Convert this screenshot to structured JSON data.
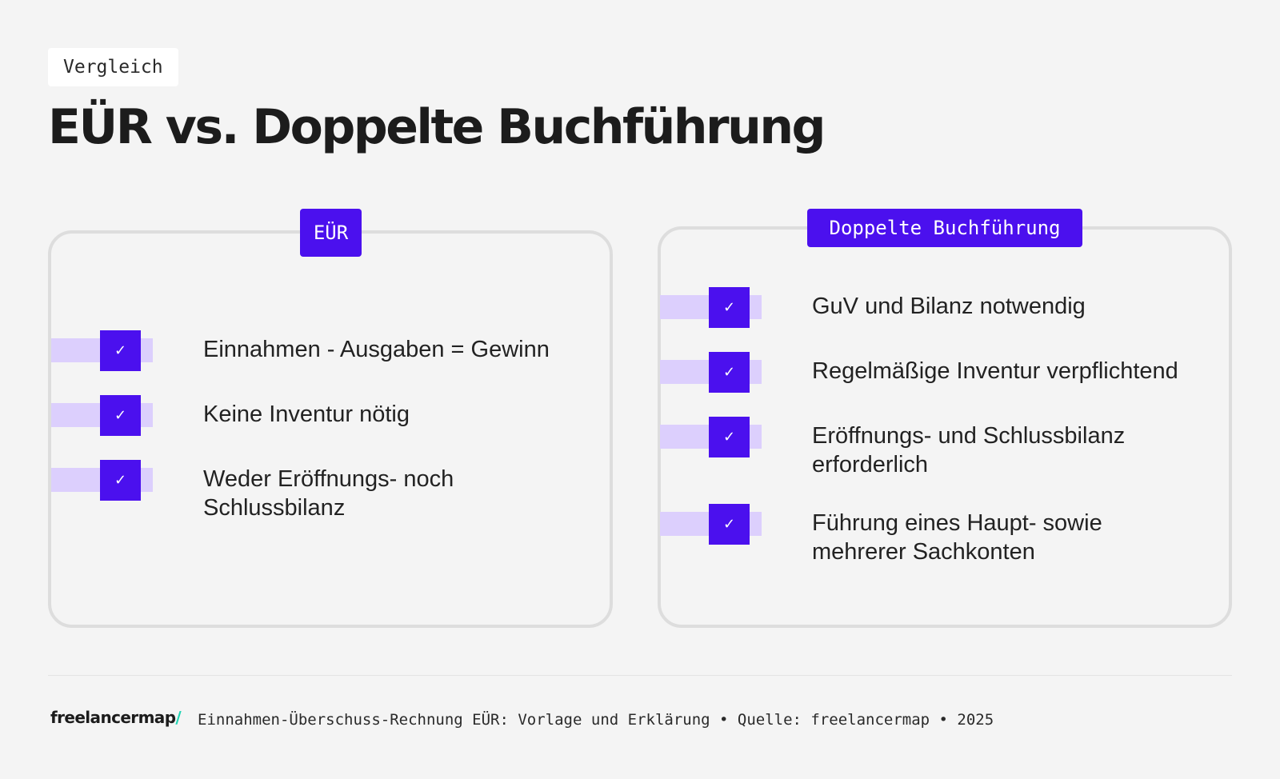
{
  "header": {
    "tag": "Vergleich",
    "title": "EÜR vs. Doppelte Buchführung"
  },
  "left_card": {
    "label": "EÜR",
    "items": [
      {
        "line1": "Einnahmen - Ausgaben = Gewinn",
        "line2": ""
      },
      {
        "line1": "Keine Inventur nötig",
        "line2": ""
      },
      {
        "line1": "Weder Eröffnungs- noch",
        "line2": "Schlussbilanz"
      }
    ]
  },
  "right_card": {
    "label": "Doppelte Buchführung",
    "items": [
      {
        "line1": "GuV und Bilanz notwendig",
        "line2": ""
      },
      {
        "line1": "Regelmäßige Inventur verpflichtend",
        "line2": ""
      },
      {
        "line1": "Eröffnungs- und Schlussbilanz",
        "line2": "erforderlich"
      },
      {
        "line1": "Führung eines Haupt- sowie",
        "line2": "mehrerer Sachkonten"
      }
    ]
  },
  "icons": {
    "check": "✓"
  },
  "footer": {
    "logo_text": "freelancermap",
    "logo_mark": "/",
    "caption": "Einnahmen-Überschuss-Rechnung EÜR: Vorlage und Erklärung • Quelle: freelancermap • 2025"
  },
  "colors": {
    "accent": "#4b10ee",
    "accent_light": "#dccffd",
    "background": "#f4f4f4",
    "logo_accent": "#1fd5b4"
  }
}
